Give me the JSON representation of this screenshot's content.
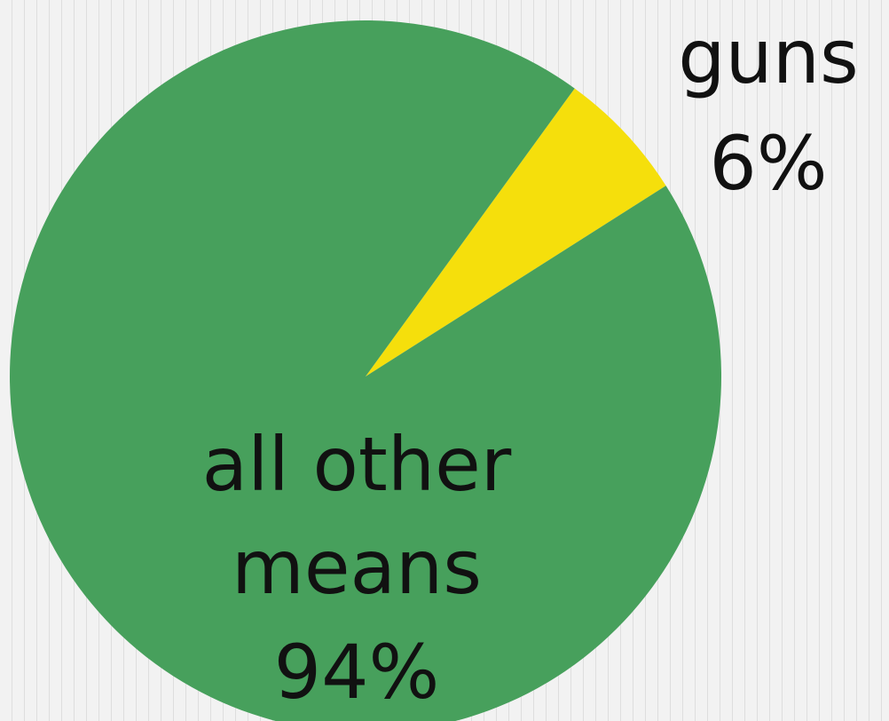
{
  "chart_data": {
    "type": "pie",
    "title": "",
    "slices": [
      {
        "label": "guns",
        "value": 6,
        "value_label": "6%",
        "color": "#f5df0c"
      },
      {
        "label": "all other means",
        "value": 94,
        "value_label": "94%",
        "color": "#47a05c"
      }
    ],
    "legend": "none",
    "label_lines": {
      "guns": [
        "guns",
        "6%"
      ],
      "all other means": [
        "all other",
        "means",
        "94%"
      ]
    }
  }
}
